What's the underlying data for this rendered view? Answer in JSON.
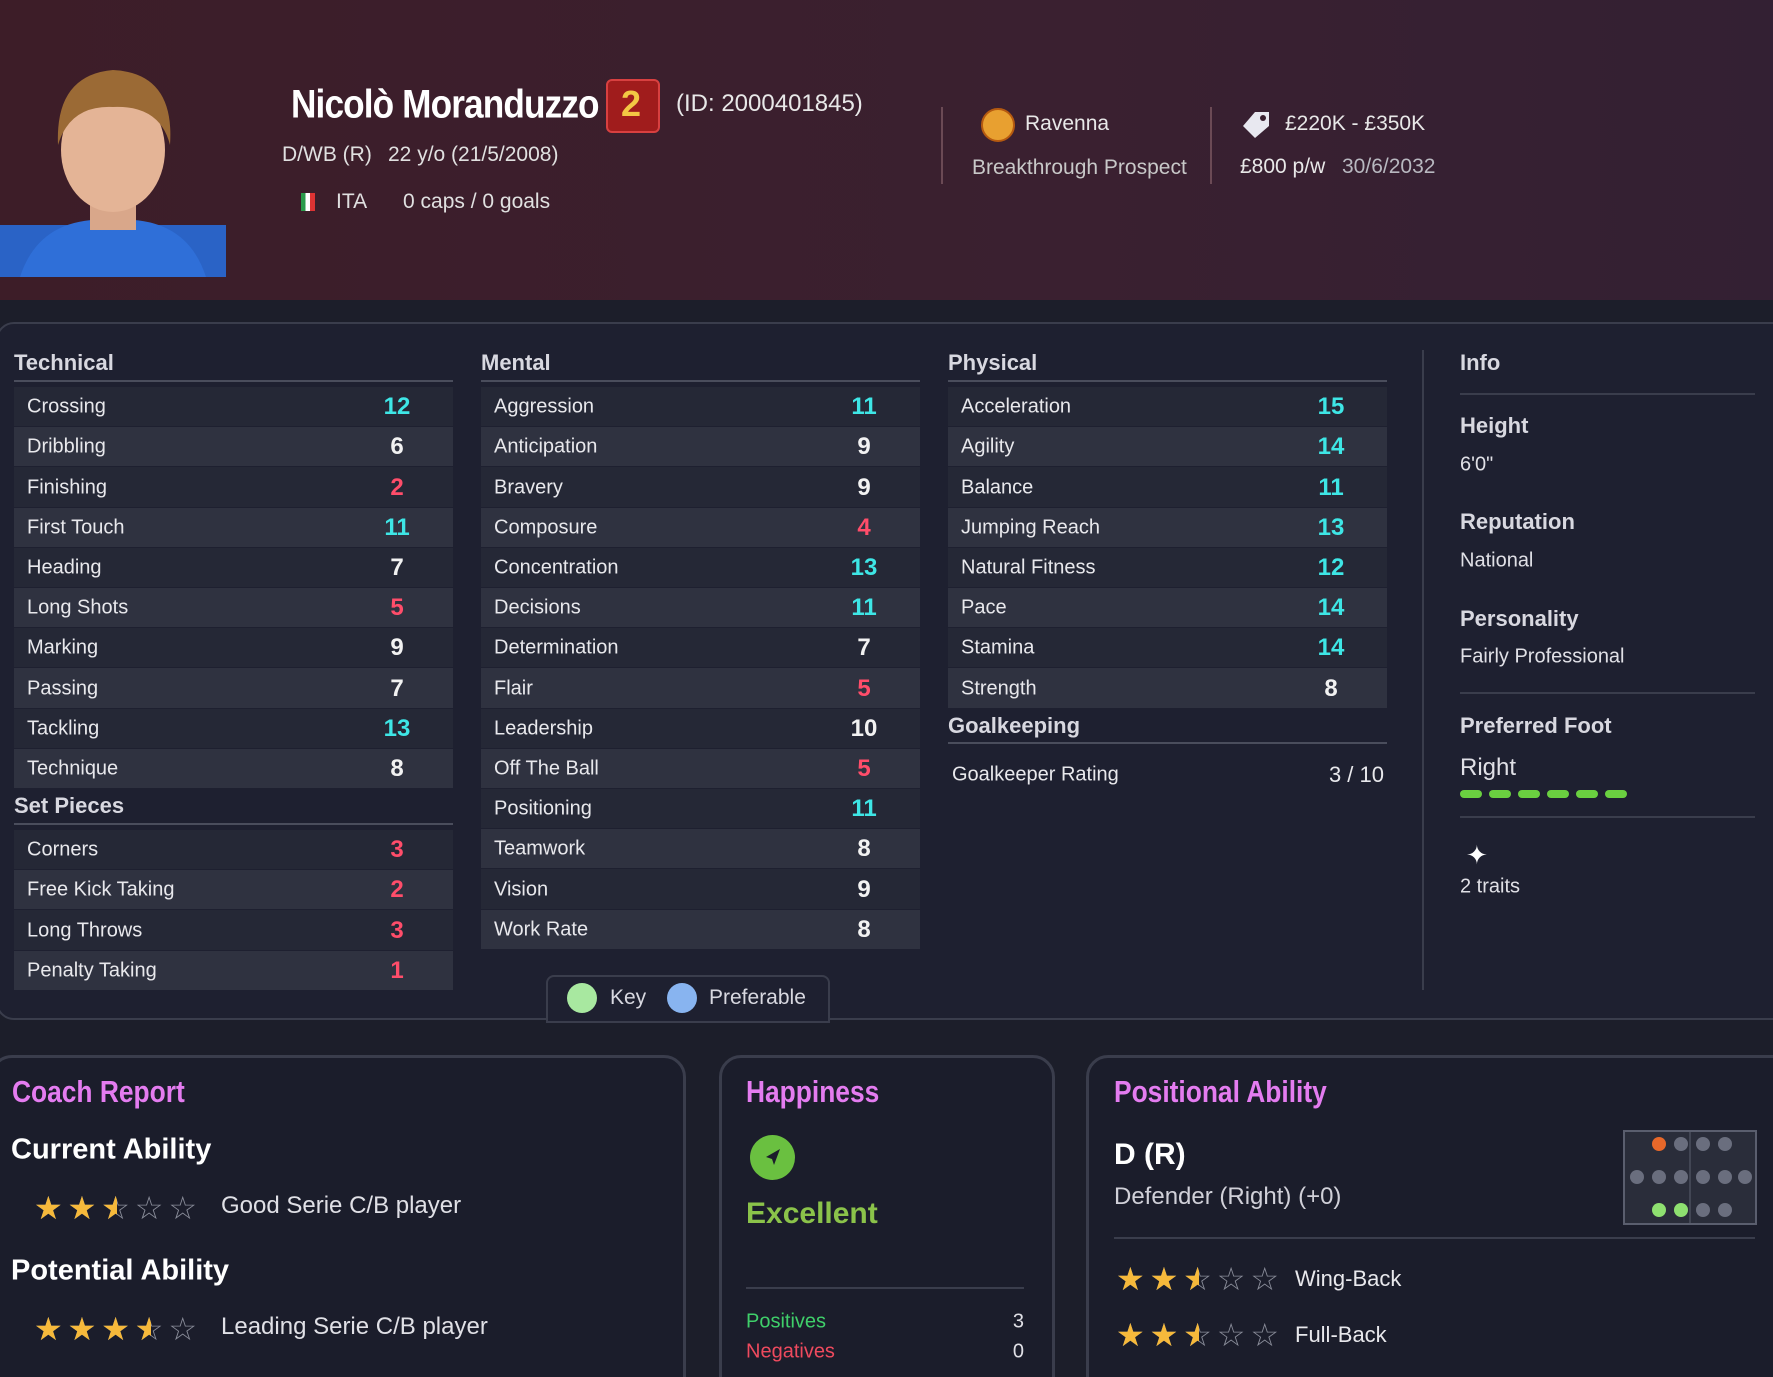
{
  "header": {
    "name": "Nicolò Moranduzzo",
    "squad_number": "2",
    "player_id": "(ID: 2000401845)",
    "position": "D/WB (R)",
    "age": "22 y/o (21/5/2008)",
    "nation": "ITA",
    "caps": "0 caps / 0 goals",
    "club": "Ravenna",
    "status": "Breakthrough Prospect",
    "value": "£220K - £350K",
    "wage": "£800 p/w",
    "contract_end": "30/6/2032"
  },
  "attributes": {
    "technical": {
      "title": "Technical",
      "rows": [
        {
          "name": "Crossing",
          "value": 12
        },
        {
          "name": "Dribbling",
          "value": 6
        },
        {
          "name": "Finishing",
          "value": 2
        },
        {
          "name": "First Touch",
          "value": 11
        },
        {
          "name": "Heading",
          "value": 7
        },
        {
          "name": "Long Shots",
          "value": 5
        },
        {
          "name": "Marking",
          "value": 9
        },
        {
          "name": "Passing",
          "value": 7
        },
        {
          "name": "Tackling",
          "value": 13
        },
        {
          "name": "Technique",
          "value": 8
        }
      ]
    },
    "set_pieces": {
      "title": "Set Pieces",
      "rows": [
        {
          "name": "Corners",
          "value": 3
        },
        {
          "name": "Free Kick Taking",
          "value": 2
        },
        {
          "name": "Long Throws",
          "value": 3
        },
        {
          "name": "Penalty Taking",
          "value": 1
        }
      ]
    },
    "mental": {
      "title": "Mental",
      "rows": [
        {
          "name": "Aggression",
          "value": 11
        },
        {
          "name": "Anticipation",
          "value": 9
        },
        {
          "name": "Bravery",
          "value": 9
        },
        {
          "name": "Composure",
          "value": 4
        },
        {
          "name": "Concentration",
          "value": 13
        },
        {
          "name": "Decisions",
          "value": 11
        },
        {
          "name": "Determination",
          "value": 7
        },
        {
          "name": "Flair",
          "value": 5
        },
        {
          "name": "Leadership",
          "value": 10
        },
        {
          "name": "Off The Ball",
          "value": 5
        },
        {
          "name": "Positioning",
          "value": 11
        },
        {
          "name": "Teamwork",
          "value": 8
        },
        {
          "name": "Vision",
          "value": 9
        },
        {
          "name": "Work Rate",
          "value": 8
        }
      ]
    },
    "physical": {
      "title": "Physical",
      "rows": [
        {
          "name": "Acceleration",
          "value": 15
        },
        {
          "name": "Agility",
          "value": 14
        },
        {
          "name": "Balance",
          "value": 11
        },
        {
          "name": "Jumping Reach",
          "value": 13
        },
        {
          "name": "Natural Fitness",
          "value": 12
        },
        {
          "name": "Pace",
          "value": 14
        },
        {
          "name": "Stamina",
          "value": 14
        },
        {
          "name": "Strength",
          "value": 8
        }
      ]
    },
    "goalkeeping": {
      "title": "Goalkeeping",
      "rating_label": "Goalkeeper Rating",
      "rating": "3 / 10"
    }
  },
  "info": {
    "title": "Info",
    "items": [
      {
        "label": "Height",
        "value": "6'0\""
      },
      {
        "label": "Reputation",
        "value": "National"
      },
      {
        "label": "Personality",
        "value": "Fairly Professional"
      },
      {
        "label": "Preferred Foot",
        "value": "Right"
      }
    ],
    "traits": "2 traits"
  },
  "legend": {
    "key": "Key",
    "preferable": "Preferable"
  },
  "coach_report": {
    "title": "Coach Report",
    "current": {
      "label": "Current Ability",
      "stars": 2.5,
      "text": "Good Serie C/B player"
    },
    "potential": {
      "label": "Potential Ability",
      "stars": 3.5,
      "text": "Leading Serie C/B player"
    }
  },
  "happiness": {
    "title": "Happiness",
    "status": "Excellent",
    "positives_label": "Positives",
    "positives": 3,
    "negatives_label": "Negatives",
    "negatives": 0
  },
  "positional": {
    "title": "Positional Ability",
    "position": "D (R)",
    "description": "Defender (Right) (+0)",
    "roles": [
      {
        "name": "Wing-Back",
        "stars": 2.5
      },
      {
        "name": "Full-Back",
        "stars": 2.5
      }
    ]
  }
}
